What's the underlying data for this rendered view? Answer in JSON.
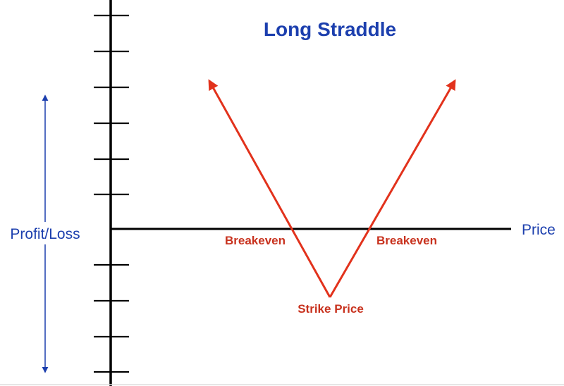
{
  "title": "Long Straddle",
  "x_axis_label": "Price",
  "y_axis_label": "Profit/Loss",
  "annotations": {
    "breakeven_left": "Breakeven",
    "breakeven_right": "Breakeven",
    "strike": "Strike Price"
  },
  "colors": {
    "title": "#1c3fae",
    "axis_label": "#1c3fae",
    "payoff": "#e2321c",
    "annotation": "#c8321e",
    "axis": "#000000"
  }
}
